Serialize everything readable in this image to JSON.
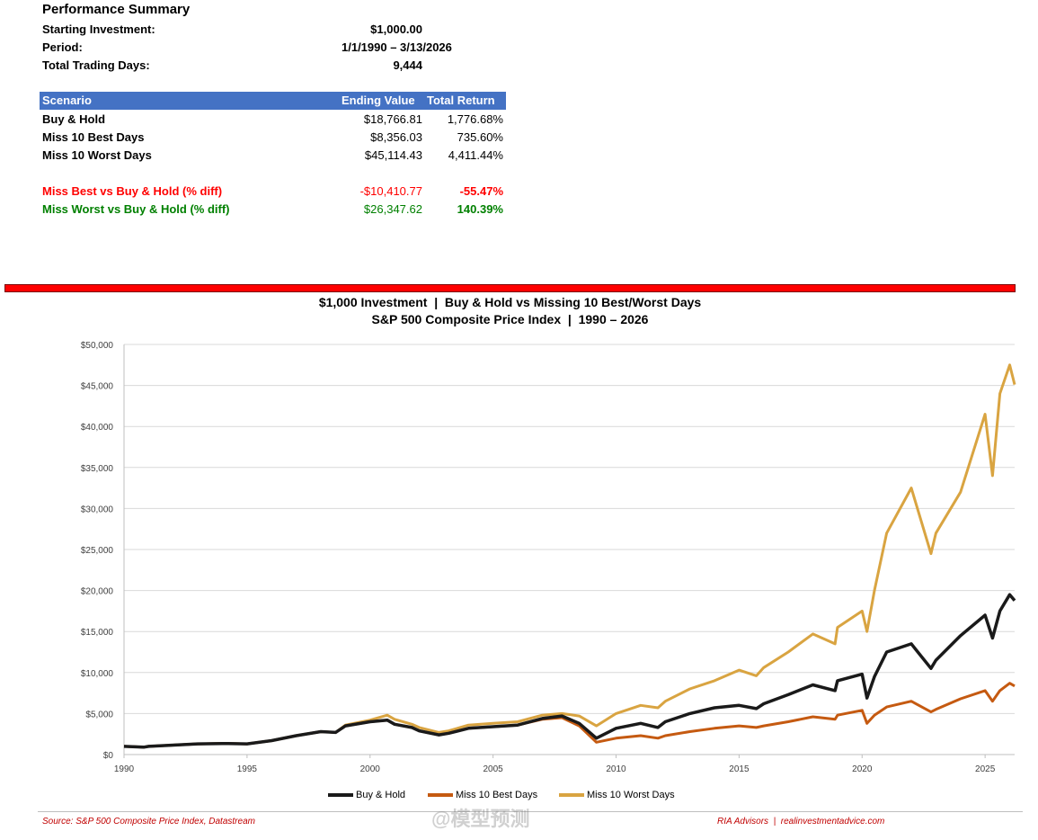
{
  "summary": {
    "title": "Performance Summary",
    "rows": [
      {
        "label": "Starting Investment:",
        "value": "$1,000.00"
      },
      {
        "label": "Period:",
        "value": "1/1/1990 – 3/13/2026"
      },
      {
        "label": "Total Trading Days:",
        "value": "9,444"
      }
    ]
  },
  "table": {
    "headers": [
      "Scenario",
      "Ending Value",
      "Total Return"
    ],
    "rows": [
      {
        "scenario": "Buy & Hold",
        "ending": "$18,766.81",
        "ret": "1,776.68%"
      },
      {
        "scenario": "Miss 10 Best Days",
        "ending": "$8,356.03",
        "ret": "735.60%"
      },
      {
        "scenario": "Miss 10 Worst Days",
        "ending": "$45,114.43",
        "ret": "4,411.44%"
      }
    ],
    "diff_best": {
      "label": "Miss Best vs Buy & Hold (% diff)",
      "value": "-$10,410.77",
      "pct": "-55.47%"
    },
    "diff_worst": {
      "label": "Miss Worst vs Buy & Hold (% diff)",
      "value": "$26,347.62",
      "pct": "140.39%"
    }
  },
  "colors": {
    "header_bg": "#4472c4",
    "red": "#ff0000",
    "green": "#008000",
    "buy_hold": "#1a1a1a",
    "miss_best": "#c55a11",
    "miss_worst": "#d9a441"
  },
  "chart_data": {
    "type": "line",
    "title": "$1,000 Investment  |  Buy & Hold vs Missing 10 Best/Worst Days",
    "subtitle": "S&P 500 Composite Price Index  |  1990 – 2026",
    "xlabel": "",
    "ylabel": "",
    "xlim": [
      1990,
      2026.2
    ],
    "ylim": [
      0,
      50000
    ],
    "x_ticks": [
      "1990",
      "1995",
      "2000",
      "2005",
      "2010",
      "2015",
      "2020",
      "2025"
    ],
    "y_ticks": [
      "$0",
      "$5,000",
      "$10,000",
      "$15,000",
      "$20,000",
      "$25,000",
      "$30,000",
      "$35,000",
      "$40,000",
      "$45,000",
      "$50,000"
    ],
    "grid": true,
    "legend_position": "bottom",
    "series": [
      {
        "name": "Buy & Hold",
        "color": "#1a1a1a",
        "x": [
          1990,
          1990.8,
          1991,
          1993,
          1994,
          1995,
          1996,
          1997,
          1998,
          1998.6,
          1999,
          2000,
          2000.7,
          2001,
          2001.7,
          2002,
          2002.8,
          2003.2,
          2004,
          2005,
          2006,
          2007,
          2007.8,
          2008.5,
          2009.2,
          2010,
          2011,
          2011.7,
          2012,
          2013,
          2014,
          2015,
          2015.7,
          2016,
          2017,
          2018,
          2018.9,
          2019,
          2020,
          2020.2,
          2020.5,
          2021,
          2022,
          2022.8,
          2023,
          2024,
          2025,
          2025.3,
          2025.6,
          2026,
          2026.2
        ],
        "y": [
          1000,
          900,
          1000,
          1300,
          1350,
          1300,
          1700,
          2300,
          2800,
          2700,
          3500,
          4000,
          4200,
          3700,
          3300,
          2900,
          2400,
          2600,
          3200,
          3400,
          3600,
          4400,
          4700,
          3800,
          2000,
          3200,
          3800,
          3300,
          4000,
          5000,
          5700,
          6000,
          5600,
          6200,
          7300,
          8500,
          7800,
          9000,
          9800,
          6900,
          9500,
          12500,
          13500,
          10500,
          11500,
          14500,
          17000,
          14200,
          17500,
          19500,
          18766.81
        ]
      },
      {
        "name": "Miss 10 Best Days",
        "color": "#c55a11",
        "x": [
          1990,
          1990.8,
          1991,
          1993,
          1994,
          1995,
          1996,
          1997,
          1998,
          1998.6,
          1999,
          2000,
          2000.7,
          2001,
          2001.7,
          2002,
          2002.8,
          2003.2,
          2004,
          2005,
          2006,
          2007,
          2007.8,
          2008.5,
          2009.2,
          2010,
          2011,
          2011.7,
          2012,
          2013,
          2014,
          2015,
          2015.7,
          2016,
          2017,
          2018,
          2018.9,
          2019,
          2020,
          2020.2,
          2020.5,
          2021,
          2022,
          2022.8,
          2023,
          2024,
          2025,
          2025.3,
          2025.6,
          2026,
          2026.2
        ],
        "y": [
          1000,
          900,
          1000,
          1300,
          1350,
          1300,
          1700,
          2300,
          2800,
          2700,
          3500,
          4000,
          4200,
          3700,
          3300,
          2900,
          2400,
          2600,
          3200,
          3400,
          3600,
          4300,
          4500,
          3500,
          1500,
          2000,
          2300,
          2000,
          2300,
          2800,
          3200,
          3500,
          3300,
          3500,
          4000,
          4600,
          4300,
          4800,
          5400,
          3800,
          4800,
          5800,
          6500,
          5200,
          5500,
          6800,
          7800,
          6500,
          7800,
          8700,
          8356.03
        ]
      },
      {
        "name": "Miss 10 Worst Days",
        "color": "#d9a441",
        "x": [
          1990,
          1990.8,
          1991,
          1993,
          1994,
          1995,
          1996,
          1997,
          1998,
          1998.6,
          1999,
          2000,
          2000.7,
          2001,
          2001.7,
          2002,
          2002.8,
          2003.2,
          2004,
          2005,
          2006,
          2007,
          2007.8,
          2008.5,
          2009.2,
          2010,
          2011,
          2011.7,
          2012,
          2013,
          2014,
          2015,
          2015.7,
          2016,
          2017,
          2018,
          2018.9,
          2019,
          2020,
          2020.2,
          2020.5,
          2021,
          2022,
          2022.8,
          2023,
          2024,
          2025,
          2025.3,
          2025.6,
          2026,
          2026.2
        ],
        "y": [
          1000,
          900,
          1000,
          1300,
          1350,
          1300,
          1700,
          2300,
          2800,
          2700,
          3600,
          4200,
          4800,
          4300,
          3700,
          3300,
          2700,
          2900,
          3600,
          3800,
          4000,
          4800,
          5000,
          4700,
          3500,
          5000,
          6000,
          5700,
          6500,
          8000,
          9000,
          10300,
          9600,
          10600,
          12500,
          14700,
          13500,
          15500,
          17500,
          15000,
          20000,
          27000,
          32500,
          24500,
          27000,
          32000,
          41500,
          34000,
          44000,
          47500,
          45114.43
        ]
      }
    ]
  },
  "source": "Source: S&P 500 Composite Price Index, Datastream",
  "credit": "RIA Advisors  |  realinvestmentadvice.com",
  "watermark": "@模型预测"
}
